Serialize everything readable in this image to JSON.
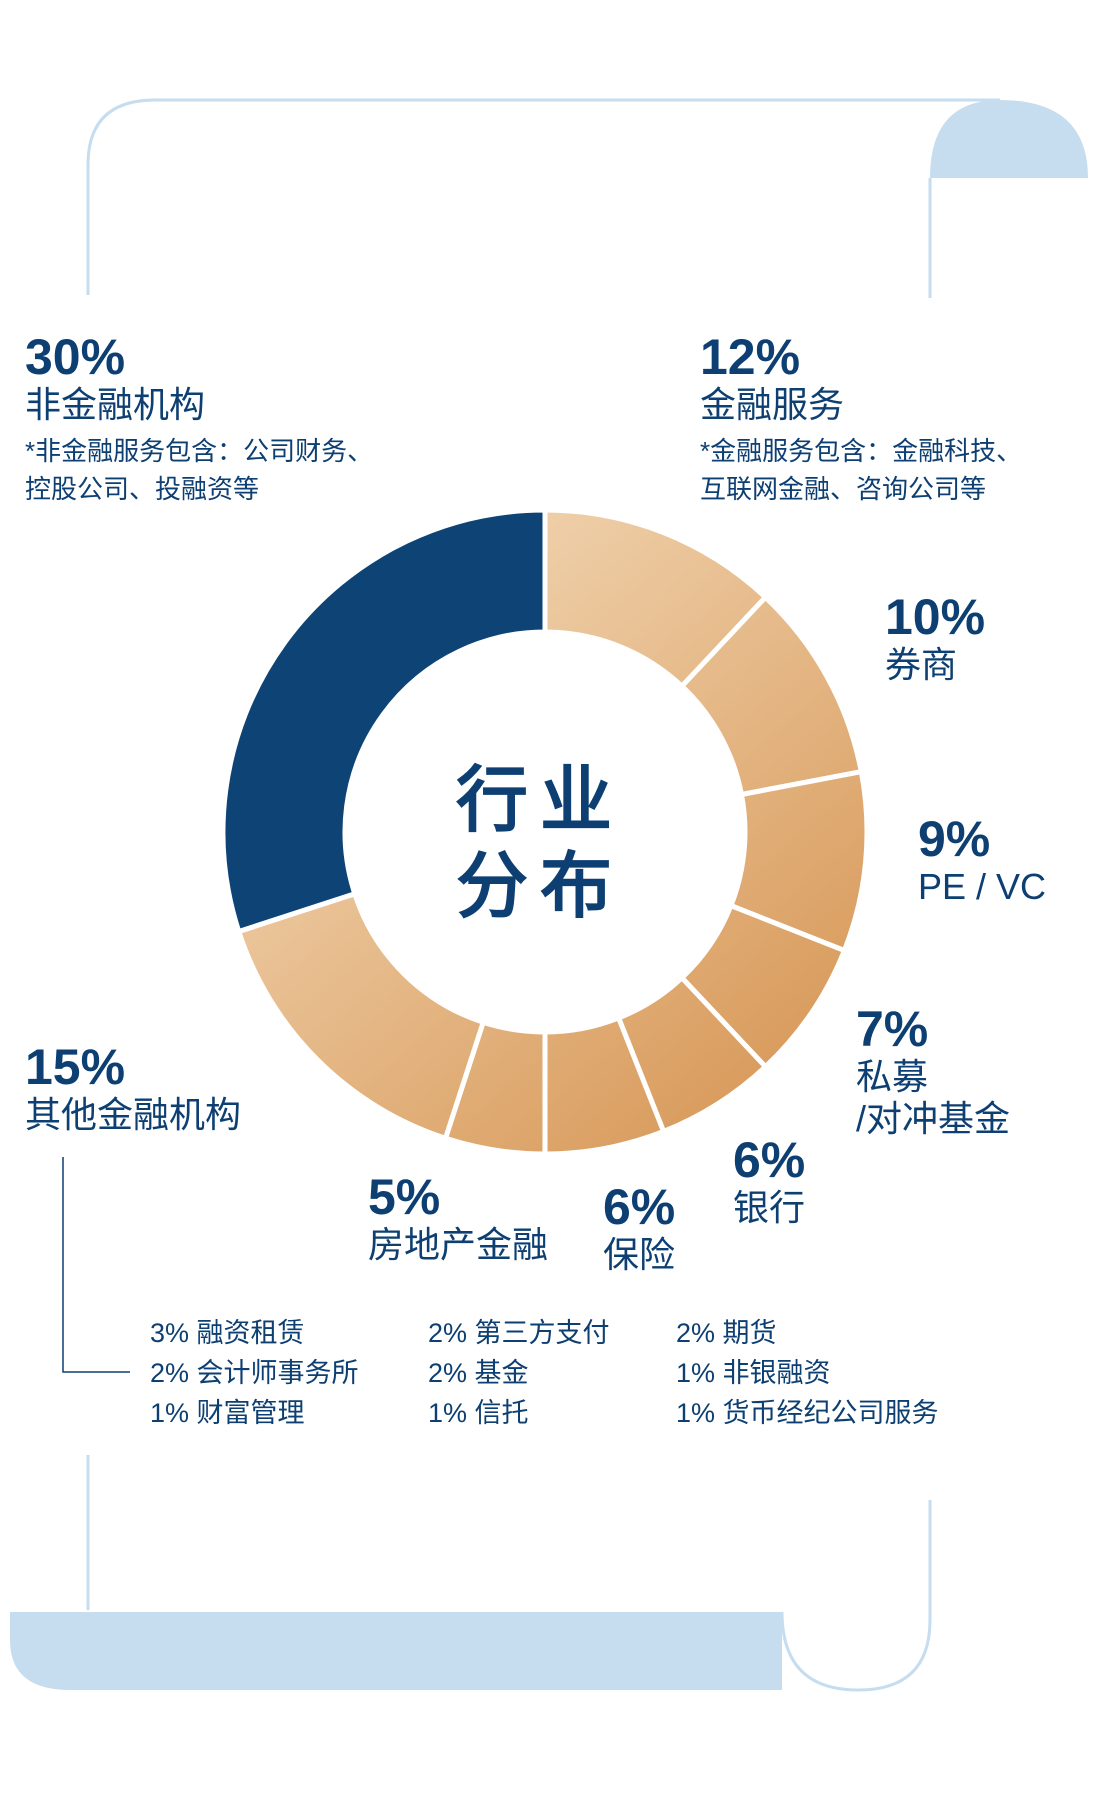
{
  "colors": {
    "navy": "#0d4475",
    "text": "#0d3f72",
    "frame_line": "#c6ddef",
    "frame_fill": "#c6ddef",
    "gold_light": "#f3d9b8",
    "gold_dark": "#d69553"
  },
  "chart_data": {
    "type": "pie",
    "title": "行业 分布",
    "title_lines": [
      "行业",
      "分布"
    ],
    "slices": [
      {
        "label": "金融服务",
        "value": 12,
        "pct": "12%"
      },
      {
        "label": "券商",
        "value": 10,
        "pct": "10%"
      },
      {
        "label": "PE / VC",
        "value": 9,
        "pct": "9%"
      },
      {
        "label": "私募/对冲基金",
        "value": 7,
        "pct": "7%"
      },
      {
        "label": "银行",
        "value": 6,
        "pct": "6%"
      },
      {
        "label": "保险",
        "value": 6,
        "pct": "6%"
      },
      {
        "label": "房地产金融",
        "value": 5,
        "pct": "5%"
      },
      {
        "label": "其他金融机构",
        "value": 15,
        "pct": "15%"
      },
      {
        "label": "非金融机构",
        "value": 30,
        "pct": "30%"
      }
    ],
    "legend": "none",
    "donut": true
  },
  "labels": {
    "nonfin": {
      "pct": "30%",
      "name": "非金融机构",
      "note1": "*非金融服务包含：公司财务、",
      "note2": "控股公司、投融资等"
    },
    "finsvc": {
      "pct": "12%",
      "name": "金融服务",
      "note1": "*金融服务包含：金融科技、",
      "note2": "互联网金融、咨询公司等"
    },
    "broker": {
      "pct": "10%",
      "name": "券商"
    },
    "pevc": {
      "pct": "9%",
      "name": "PE / VC"
    },
    "private": {
      "pct": "7%",
      "name1": "私募",
      "name2": "/对冲基金"
    },
    "bank": {
      "pct": "6%",
      "name": "银行"
    },
    "insurance": {
      "pct": "6%",
      "name": "保险"
    },
    "realestate": {
      "pct": "5%",
      "name": "房地产金融"
    },
    "other": {
      "pct": "15%",
      "name": "其他金融机构"
    }
  },
  "other_breakdown": {
    "col1": [
      "3% 融资租赁",
      "2% 会计师事务所",
      "1% 财富管理"
    ],
    "col2": [
      "2% 第三方支付",
      "2% 基金",
      "1% 信托"
    ],
    "col3": [
      "2% 期货",
      "1% 非银融资",
      "1% 货币经纪公司服务"
    ]
  }
}
